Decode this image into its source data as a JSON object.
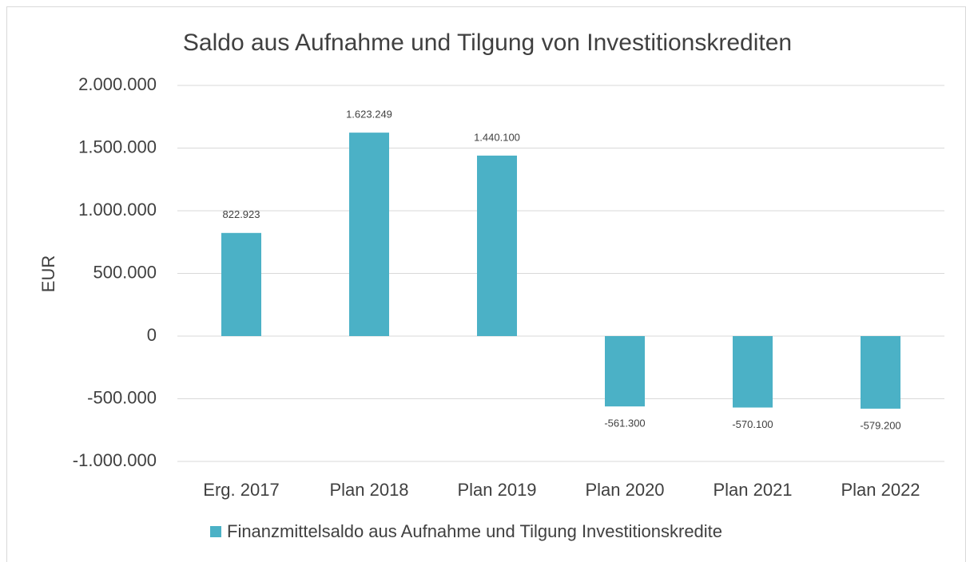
{
  "chart_data": {
    "type": "bar",
    "title": "Saldo aus Aufnahme und Tilgung von Investitionskrediten",
    "y_label": "EUR",
    "categories": [
      "Erg. 2017",
      "Plan 2018",
      "Plan 2019",
      "Plan 2020",
      "Plan 2021",
      "Plan 2022"
    ],
    "series": [
      {
        "name": "Finanzmittelsaldo aus Aufnahme und Tilgung Investitionskredite",
        "color": "#4bb1c6",
        "values": [
          822923,
          1623249,
          1440100,
          -561300,
          -570100,
          -579200
        ],
        "value_labels": [
          "822.923",
          "1.623.249",
          "1.440.100",
          "-561.300",
          "-570.100",
          "-579.200"
        ]
      }
    ],
    "ylim": [
      -1000000,
      2000000
    ],
    "yticks": [
      {
        "value": -1000000,
        "label": "-1.000.000"
      },
      {
        "value": -500000,
        "label": "-500.000"
      },
      0,
      {
        "value": 500000,
        "label": "500.000"
      },
      {
        "value": 1000000,
        "label": "1.000.000"
      },
      {
        "value": 1500000,
        "label": "1.500.000"
      },
      {
        "value": 2000000,
        "label": "2.000.000"
      }
    ],
    "grid": true,
    "legend": "bottom"
  }
}
